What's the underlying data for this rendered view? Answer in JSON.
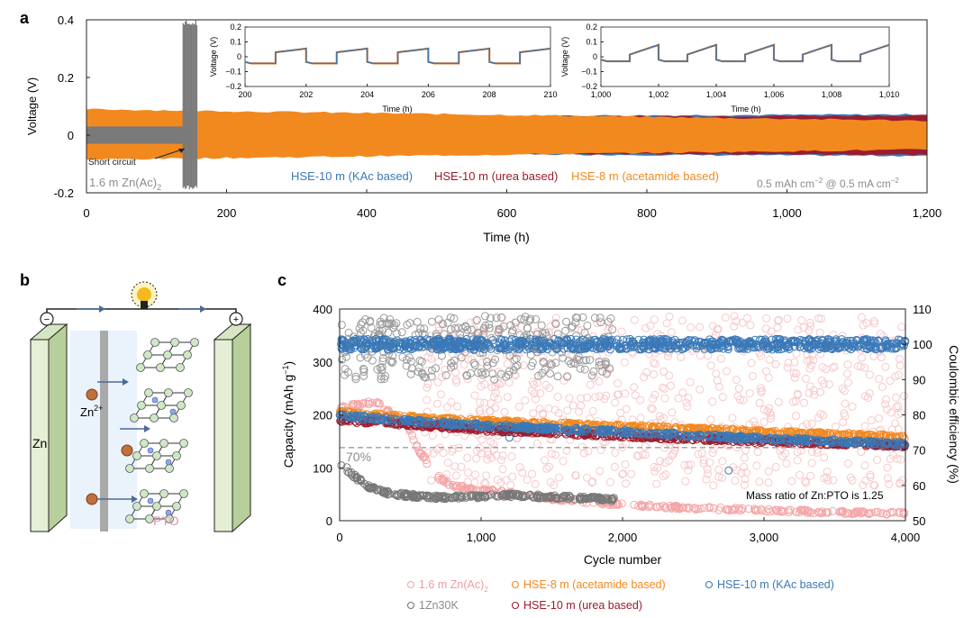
{
  "panels": {
    "a": "a",
    "b": "b",
    "c": "c"
  },
  "colors": {
    "kac": "#3a79b8",
    "urea": "#9b1c2e",
    "acetamide": "#f2891f",
    "zn_ac": "#f4a6a8",
    "zn30k": "#7a7a7a",
    "ref": "#888888"
  },
  "chart_data": [
    {
      "id": "a-main",
      "type": "line",
      "title": "",
      "xlabel": "Time (h)",
      "ylabel": "Voltage (V)",
      "xlim": [
        0,
        1200
      ],
      "ylim": [
        -0.2,
        0.4
      ],
      "xticks": [
        0,
        200,
        400,
        600,
        800,
        1000,
        1200
      ],
      "xtick_labels": [
        "0",
        "200",
        "400",
        "600",
        "800",
        "1,000",
        "1,200"
      ],
      "yticks": [
        -0.2,
        0,
        0.2,
        0.4
      ],
      "ytick_labels": [
        "-0.2",
        "0",
        "0.2",
        "0.4"
      ],
      "series": [
        {
          "name": "HSE-10 m (KAc based)",
          "key": "kac",
          "x": [
            0,
            1200
          ],
          "upper": [
            0.062,
            0.072
          ],
          "lower": [
            -0.062,
            -0.072
          ]
        },
        {
          "name": "HSE-10 m (urea based)",
          "key": "urea",
          "x": [
            0,
            1200
          ],
          "upper": [
            0.06,
            0.068
          ],
          "lower": [
            -0.06,
            -0.068
          ]
        },
        {
          "name": "HSE-8 m (acetamide based)",
          "key": "acetamide",
          "x": [
            0,
            1200
          ],
          "upper": [
            0.09,
            0.05
          ],
          "lower": [
            -0.085,
            -0.05
          ]
        },
        {
          "name": "1.6 m Zn(Ac)2",
          "key": "zn30k",
          "x": [
            0,
            150
          ],
          "upper": [
            0.03,
            0.03
          ],
          "lower": [
            -0.03,
            -0.03
          ],
          "short_circuit_at": 145,
          "spike_range": [
            138,
            158
          ]
        }
      ],
      "annotations": {
        "short_circuit": "Short circuit",
        "zn_ac_label": "1.6 m Zn(Ac)",
        "zn_ac_sub": "2",
        "legend_kac": "HSE-10 m (KAc based)",
        "legend_urea": "HSE-10 m (urea based)",
        "legend_acet": "HSE-8 m (acetamide based)",
        "condition_a": "0.5 mAh cm",
        "condition_sup1": "−2",
        "condition_b": " @ 0.5 mA cm",
        "condition_sup2": "−2"
      }
    },
    {
      "id": "a-inset-1",
      "type": "line",
      "xlabel": "Time (h)",
      "ylabel": "Voltage (V)",
      "xlim": [
        200,
        210
      ],
      "ylim": [
        -0.2,
        0.2
      ],
      "xticks": [
        200,
        202,
        204,
        206,
        208,
        210
      ],
      "xtick_labels": [
        "200",
        "202",
        "204",
        "206",
        "208",
        "210"
      ],
      "yticks": [
        -0.2,
        -0.1,
        0,
        0.1,
        0.2
      ],
      "ytick_labels": [
        "−0.2",
        "−0.1",
        "0",
        "0.1",
        "0.2"
      ],
      "cycle_period_h": 2,
      "charge_plateau_start": 0.03,
      "charge_plateau_end": 0.055,
      "discharge_plateau": -0.045
    },
    {
      "id": "a-inset-2",
      "type": "line",
      "xlabel": "Time (h)",
      "ylabel": "Voltage (V)",
      "xlim": [
        1000,
        1010
      ],
      "ylim": [
        -0.2,
        0.2
      ],
      "xticks": [
        1000,
        1002,
        1004,
        1006,
        1008,
        1010
      ],
      "xtick_labels": [
        "1,000",
        "1,002",
        "1,004",
        "1,006",
        "1,008",
        "1,010"
      ],
      "yticks": [
        -0.2,
        -0.1,
        0,
        0.1,
        0.2
      ],
      "ytick_labels": [
        "−0.2",
        "−0.1",
        "0",
        "0.1",
        "0.2"
      ],
      "cycle_period_h": 2,
      "charge_plateau_start": 0.015,
      "charge_plateau_end": 0.08,
      "discharge_plateau": -0.03
    },
    {
      "id": "c-main",
      "type": "scatter",
      "xlabel": "Cycle number",
      "ylabel": "Capacity (mAh g",
      "ylabel_sup": "−1",
      "ylabel_end": ")",
      "y2label": "Coulombic efficiency (%)",
      "xlim": [
        0,
        4000
      ],
      "ylim": [
        0,
        400
      ],
      "y2lim": [
        50,
        110
      ],
      "xticks": [
        0,
        1000,
        2000,
        3000,
        4000
      ],
      "xtick_labels": [
        "0",
        "1,000",
        "2,000",
        "3,000",
        "4,000"
      ],
      "yticks": [
        0,
        100,
        200,
        300,
        400
      ],
      "ytick_labels": [
        "0",
        "100",
        "200",
        "300",
        "400"
      ],
      "y2ticks": [
        50,
        60,
        70,
        80,
        90,
        100,
        110
      ],
      "y2tick_labels": [
        "50",
        "60",
        "70",
        "80",
        "90",
        "100",
        "110"
      ],
      "reference_line": {
        "y": 138,
        "label": "70%"
      },
      "annotation": "Mass ratio of Zn:PTO is 1.25",
      "series": [
        {
          "name": "1.6 m Zn(Ac)2",
          "key": "zn_ac",
          "capacity": {
            "x": [
              0,
              100,
              250,
              400,
              500,
              560,
              600,
              650,
              800,
              1500,
              2000,
              2500,
              3000,
              3500,
              4000
            ],
            "y": [
              215,
              218,
              225,
              195,
              170,
              130,
              120,
              90,
              65,
              42,
              30,
              24,
              20,
              16,
              14
            ]
          },
          "ce_range": [
            60,
            108
          ]
        },
        {
          "name": "1Zn30K",
          "key": "zn30k",
          "capacity": {
            "x": [
              0,
              100,
              200,
              300,
              400,
              600,
              800,
              1000,
              1200,
              1500,
              1800,
              1950
            ],
            "y": [
              110,
              85,
              65,
              55,
              50,
              45,
              44,
              46,
              48,
              45,
              42,
              40
            ]
          },
          "ce_range": [
            90,
            108
          ],
          "ce_xmax": 1950
        },
        {
          "name": "HSE-8 m (acetamide based)",
          "key": "acetamide",
          "capacity": {
            "x": [
              0,
              500,
              1000,
              2000,
              3000,
              4000
            ],
            "y": [
              205,
              195,
              188,
              178,
              168,
              158
            ]
          },
          "ce_center": 100
        },
        {
          "name": "HSE-10 m (urea based)",
          "key": "urea",
          "capacity": {
            "x": [
              0,
              500,
              1000,
              2000,
              3000,
              4000
            ],
            "y": [
              190,
              182,
              172,
              160,
              150,
              142
            ]
          },
          "ce_center": 100
        },
        {
          "name": "HSE-10 m (KAc based)",
          "key": "kac",
          "capacity": {
            "x": [
              0,
              500,
              1000,
              2000,
              3000,
              4000
            ],
            "y": [
              198,
              188,
              180,
              168,
              155,
              145
            ]
          },
          "ce_center": 100
        }
      ],
      "outliers": [
        {
          "x": 1200,
          "y": 157,
          "key": "kac"
        },
        {
          "x": 2750,
          "y": 95,
          "key": "kac"
        }
      ],
      "legend": [
        {
          "label": "1.6 m Zn(Ac)",
          "sub": "2",
          "key": "zn_ac"
        },
        {
          "label": "HSE-8 m (acetamide based)",
          "sub": "",
          "key": "acetamide"
        },
        {
          "label": "HSE-10 m (KAc based)",
          "sub": "",
          "key": "kac"
        },
        {
          "label": "1Zn30K",
          "sub": "",
          "key": "zn30k"
        },
        {
          "label": "HSE-10 m (urea based)",
          "sub": "",
          "key": "urea"
        }
      ]
    }
  ],
  "schematic": {
    "zn_label": "Zn",
    "ion_label": "Zn",
    "ion_sup": "2+",
    "pto_label": "PTO",
    "minus": "−",
    "plus": "+"
  }
}
